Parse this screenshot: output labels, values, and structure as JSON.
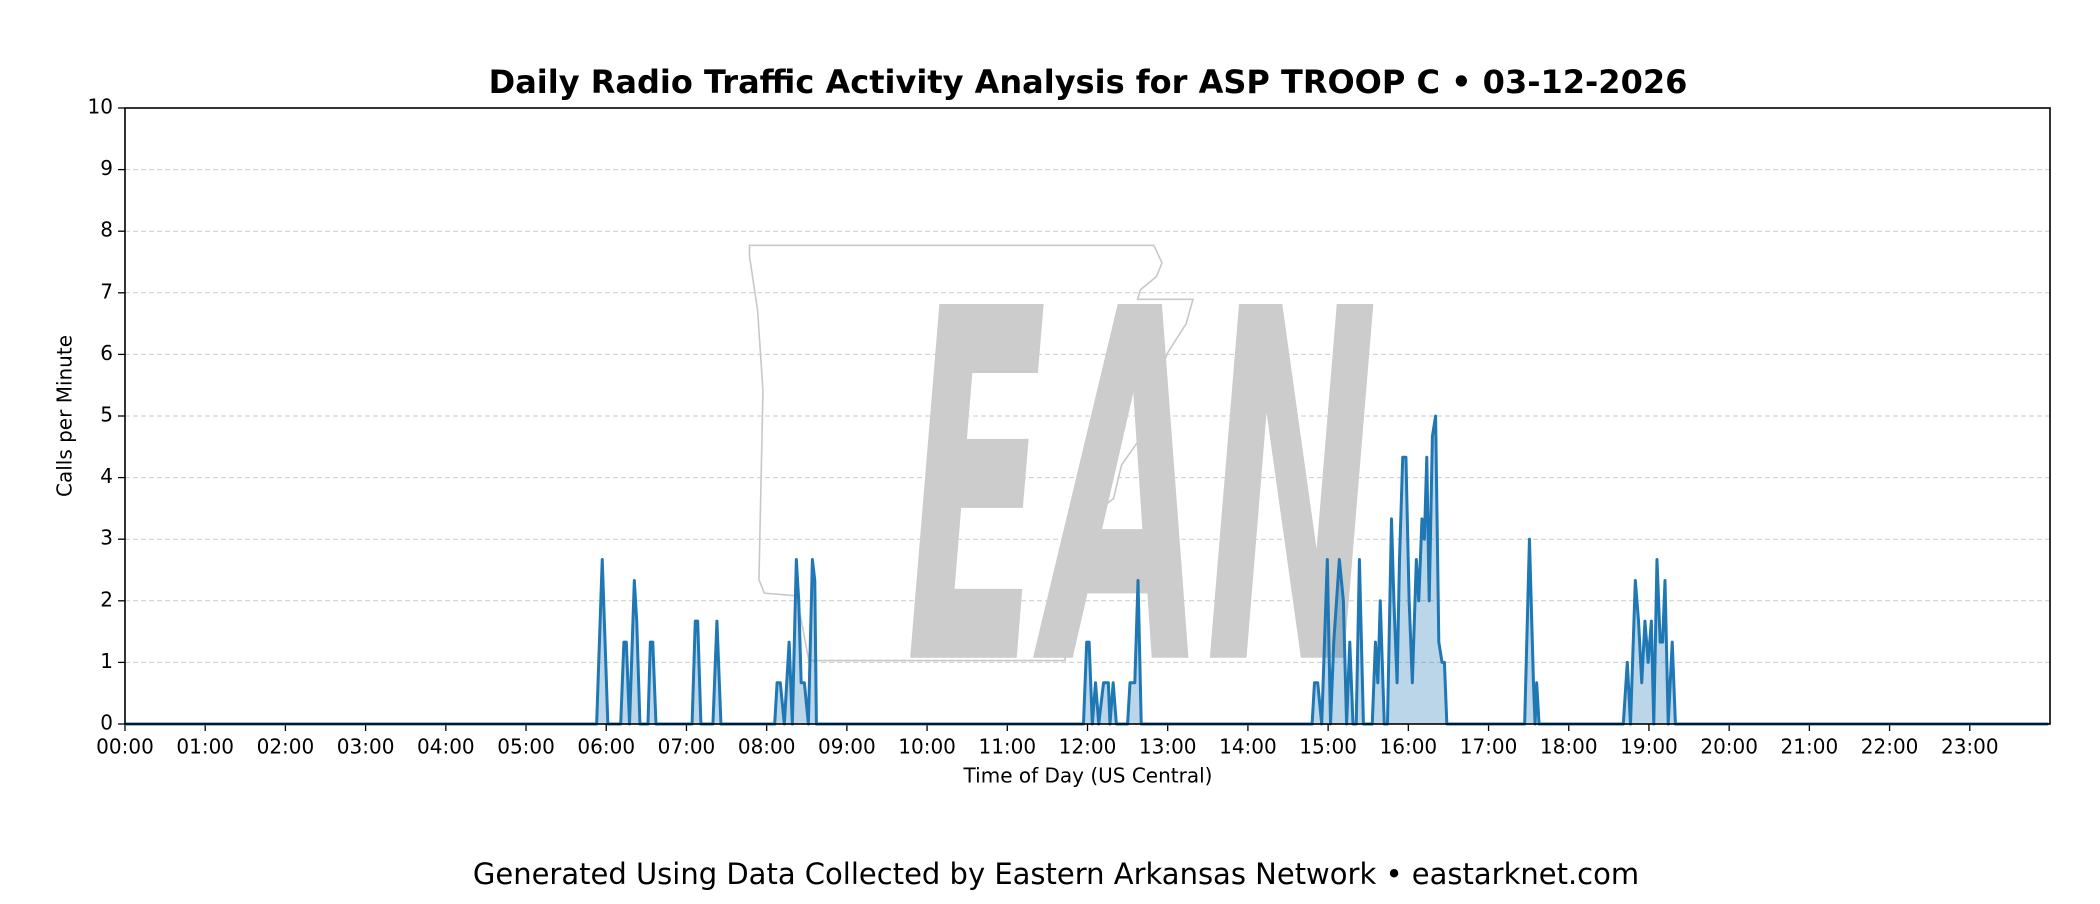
{
  "chart_data": {
    "type": "line",
    "title": "Daily Radio Traffic Activity Analysis for ASP TROOP C • 03-12-2026",
    "x_label": "Time of Day (US Central)",
    "y_label": "Calls per Minute",
    "watermark": "EAN",
    "footer": "Generated Using Data Collected by Eastern Arkansas Network • eastarknet.com",
    "xlim": [
      0,
      24
    ],
    "ylim": [
      0,
      10
    ],
    "xticks": [
      {
        "value": 0,
        "label": "00:00"
      },
      {
        "value": 1,
        "label": "01:00"
      },
      {
        "value": 2,
        "label": "02:00"
      },
      {
        "value": 3,
        "label": "03:00"
      },
      {
        "value": 4,
        "label": "04:00"
      },
      {
        "value": 5,
        "label": "05:00"
      },
      {
        "value": 6,
        "label": "06:00"
      },
      {
        "value": 7,
        "label": "07:00"
      },
      {
        "value": 8,
        "label": "08:00"
      },
      {
        "value": 9,
        "label": "09:00"
      },
      {
        "value": 10,
        "label": "10:00"
      },
      {
        "value": 11,
        "label": "11:00"
      },
      {
        "value": 12,
        "label": "12:00"
      },
      {
        "value": 13,
        "label": "13:00"
      },
      {
        "value": 14,
        "label": "14:00"
      },
      {
        "value": 15,
        "label": "15:00"
      },
      {
        "value": 16,
        "label": "16:00"
      },
      {
        "value": 17,
        "label": "17:00"
      },
      {
        "value": 18,
        "label": "18:00"
      },
      {
        "value": 19,
        "label": "19:00"
      },
      {
        "value": 20,
        "label": "20:00"
      },
      {
        "value": 21,
        "label": "21:00"
      },
      {
        "value": 22,
        "label": "22:00"
      },
      {
        "value": 23,
        "label": "23:00"
      }
    ],
    "yticks": [
      0,
      1,
      2,
      3,
      4,
      5,
      6,
      7,
      8,
      9,
      10
    ],
    "grid": true,
    "x": [
      0,
      5.88,
      5.95,
      6.02,
      6.18,
      6.22,
      6.25,
      6.29,
      6.35,
      6.38,
      6.42,
      6.52,
      6.55,
      6.58,
      6.62,
      7.07,
      7.11,
      7.14,
      7.18,
      7.33,
      7.38,
      7.43,
      8.1,
      8.13,
      8.17,
      8.22,
      8.28,
      8.32,
      8.37,
      8.4,
      8.43,
      8.47,
      8.52,
      8.57,
      8.6,
      8.62,
      11.95,
      11.99,
      12.02,
      12.06,
      12.1,
      12.14,
      12.2,
      12.26,
      12.28,
      12.32,
      12.36,
      12.5,
      12.53,
      12.59,
      12.63,
      12.67,
      14.8,
      14.83,
      14.87,
      14.92,
      14.99,
      15.03,
      15.07,
      15.14,
      15.19,
      15.23,
      15.27,
      15.31,
      15.35,
      15.39,
      15.44,
      15.55,
      15.59,
      15.62,
      15.65,
      15.7,
      15.74,
      15.79,
      15.82,
      15.86,
      15.89,
      15.93,
      15.97,
      16.01,
      16.05,
      16.1,
      16.13,
      16.17,
      16.2,
      16.23,
      16.26,
      16.3,
      16.34,
      16.38,
      16.42,
      16.45,
      16.48,
      17.45,
      17.51,
      17.56,
      17.58,
      17.6,
      17.63,
      18.68,
      18.73,
      18.77,
      18.83,
      18.87,
      18.91,
      18.95,
      18.99,
      19.03,
      19.06,
      19.1,
      19.14,
      19.17,
      19.2,
      19.24,
      19.29,
      19.33,
      23.98
    ],
    "series": [
      {
        "name": "Calls per Minute",
        "color": "#1f77b4",
        "values": [
          0,
          0,
          2.67,
          0,
          0,
          1.33,
          1.33,
          0,
          2.33,
          1.67,
          0,
          0,
          1.33,
          1.33,
          0,
          0,
          1.67,
          1.67,
          0,
          0,
          1.67,
          0,
          0,
          0.67,
          0.67,
          0,
          1.33,
          0,
          2.67,
          2.0,
          0.67,
          0.67,
          0,
          2.67,
          2.33,
          0,
          0,
          1.33,
          1.33,
          0,
          0.67,
          0,
          0.67,
          0.67,
          0,
          0.67,
          0,
          0,
          0.67,
          0.67,
          2.33,
          0,
          0,
          0.67,
          0.67,
          0,
          2.67,
          0,
          1.33,
          2.67,
          2.0,
          0,
          1.33,
          0,
          0,
          2.67,
          0,
          0,
          1.33,
          0.67,
          2.0,
          0,
          0,
          3.33,
          2.0,
          0.67,
          2.67,
          4.33,
          4.33,
          2.0,
          0.67,
          2.67,
          2.0,
          3.33,
          3.0,
          4.33,
          2.0,
          4.67,
          5.0,
          1.33,
          1.0,
          1.0,
          0,
          0,
          3.0,
          0.67,
          0,
          0.67,
          0,
          0,
          1.0,
          0,
          2.33,
          1.67,
          0.67,
          1.67,
          1.0,
          1.67,
          0,
          2.67,
          1.33,
          1.33,
          2.33,
          0,
          1.33,
          0,
          0
        ]
      }
    ]
  }
}
